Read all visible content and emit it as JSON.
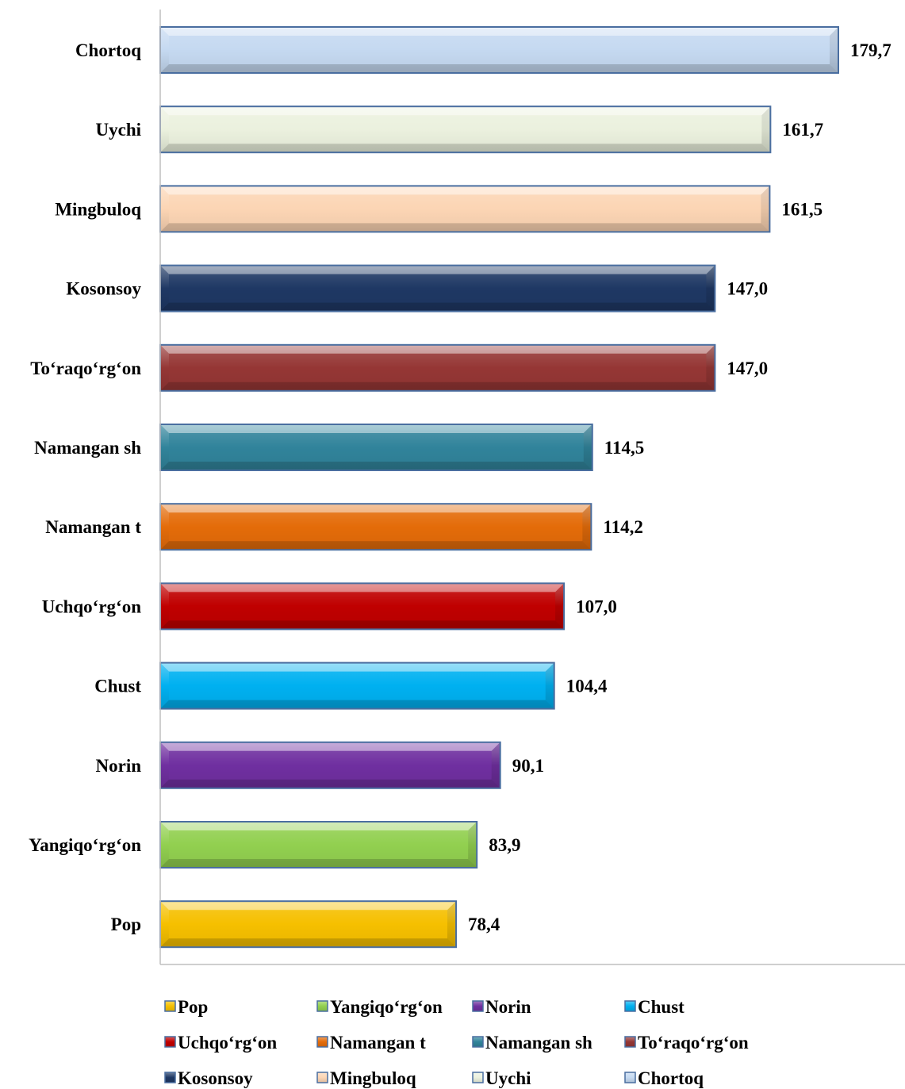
{
  "chart_data": {
    "type": "bar",
    "orientation": "horizontal",
    "title": "",
    "xlabel": "",
    "ylabel": "",
    "xlim": [
      0,
      200
    ],
    "grid": false,
    "legend_position": "bottom",
    "categories": [
      "Pop",
      "Yangiqo‘rg‘on",
      "Norin",
      "Chust",
      "Uchqo‘rg‘on",
      "Namangan t",
      "Namangan sh",
      "To‘raqo‘rg‘on",
      "Kosonsoy",
      "Mingbuloq",
      "Uychi",
      "Chortoq"
    ],
    "values": [
      78.4,
      83.9,
      90.1,
      104.4,
      107.0,
      114.2,
      114.5,
      147.0,
      147.0,
      161.5,
      161.7,
      179.7
    ],
    "value_labels": [
      "78,4",
      "83,9",
      "90,1",
      "104,4",
      "107,0",
      "114,2",
      "114,5",
      "147,0",
      "147,0",
      "161,5",
      "161,7",
      "179,7"
    ],
    "colors": [
      "#f5c000",
      "#92d050",
      "#7030a0",
      "#00b0f0",
      "#c00000",
      "#e46c0a",
      "#31849b",
      "#953735",
      "#1f3864",
      "#fcd5b4",
      "#ebf1de",
      "#c5d9f1"
    ],
    "legend": [
      "Pop",
      "Yangiqo‘rg‘on",
      "Norin",
      "Chust",
      "Uchqo‘rg‘on",
      "Namangan t",
      "Namangan sh",
      "To‘raqo‘rg‘on",
      "Kosonsoy",
      "Mingbuloq",
      "Uychi",
      "Chortoq"
    ]
  }
}
